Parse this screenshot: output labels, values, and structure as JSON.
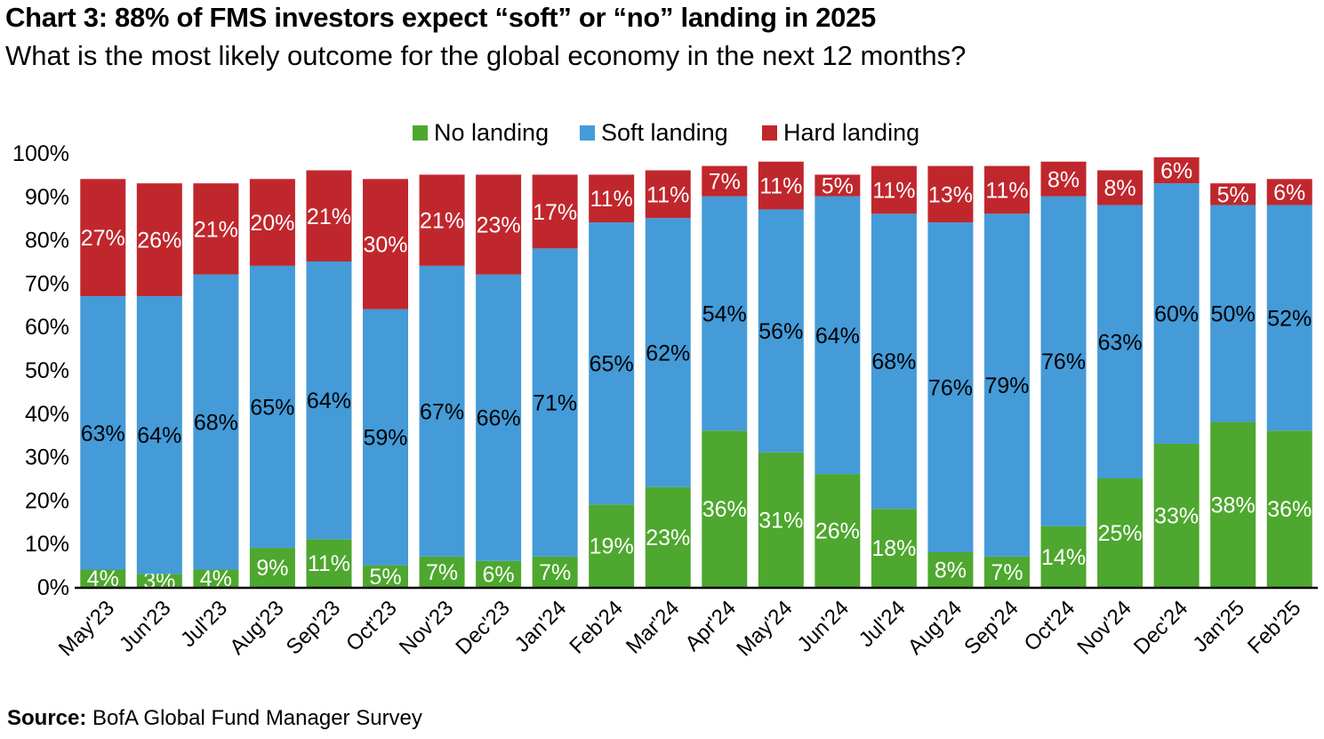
{
  "title": "Chart 3: 88% of FMS investors expect “soft” or “no” landing in 2025",
  "subtitle": "What is the most likely outcome for the global economy in the next 12 months?",
  "source": {
    "label": "Source:",
    "text": " BofA Global Fund Manager Survey"
  },
  "colors": {
    "no_landing": "#4ea72e",
    "soft_landing": "#449bd8",
    "hard_landing": "#c0272d"
  },
  "chart_data": {
    "type": "bar",
    "stacked": true,
    "categories": [
      "May'23",
      "Jun'23",
      "Jul'23",
      "Aug'23",
      "Sep'23",
      "Oct'23",
      "Nov'23",
      "Dec'23",
      "Jan'24",
      "Feb'24",
      "Mar'24",
      "Apr'24",
      "May'24",
      "Jun'24",
      "Jul'24",
      "Aug'24",
      "Sep'24",
      "Oct'24",
      "Nov'24",
      "Dec'24",
      "Jan'25",
      "Feb'25"
    ],
    "series": [
      {
        "name": "No landing",
        "color": "#4ea72e",
        "values": [
          4,
          3,
          4,
          9,
          11,
          5,
          7,
          6,
          7,
          19,
          23,
          36,
          31,
          26,
          18,
          8,
          7,
          14,
          25,
          33,
          38,
          36
        ]
      },
      {
        "name": "Soft landing",
        "color": "#449bd8",
        "values": [
          63,
          64,
          68,
          65,
          64,
          59,
          67,
          66,
          71,
          65,
          62,
          54,
          56,
          64,
          68,
          76,
          79,
          76,
          63,
          60,
          50,
          52
        ]
      },
      {
        "name": "Hard landing",
        "color": "#c0272d",
        "values": [
          27,
          26,
          21,
          20,
          21,
          30,
          21,
          23,
          17,
          11,
          11,
          7,
          11,
          5,
          11,
          13,
          11,
          8,
          8,
          6,
          5,
          6
        ]
      }
    ],
    "ylim": [
      0,
      100
    ],
    "yticks": [
      "0%",
      "10%",
      "20%",
      "30%",
      "40%",
      "50%",
      "60%",
      "70%",
      "80%",
      "90%",
      "100%"
    ],
    "data_label_suffix": "%",
    "legend": "top-center"
  }
}
